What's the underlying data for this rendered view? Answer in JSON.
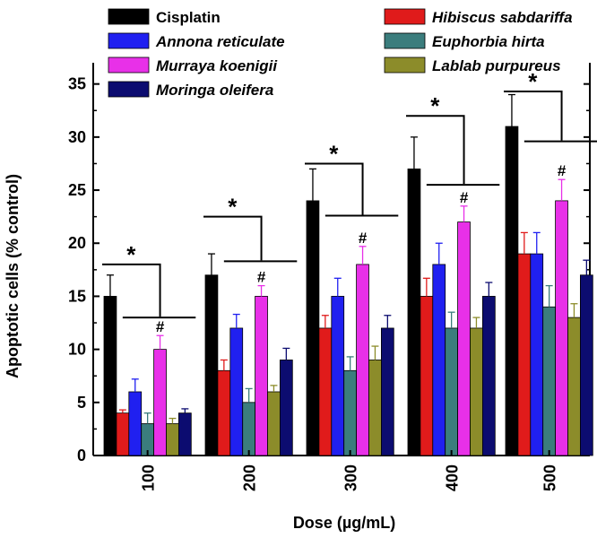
{
  "chart_data": {
    "type": "bar",
    "title": "",
    "xlabel": "Dose (µg/mL)",
    "ylabel": "Apoptotic cells (% control)",
    "ylim": [
      0,
      37
    ],
    "yticks": [
      0,
      5,
      10,
      15,
      20,
      25,
      30,
      35
    ],
    "categories": [
      "100",
      "200",
      "300",
      "400",
      "500"
    ],
    "series": [
      {
        "name": "Cisplatin",
        "italic": false,
        "color": "#000000",
        "values": [
          15,
          17,
          24,
          27,
          31
        ],
        "errors": [
          2,
          2,
          3,
          3,
          3
        ]
      },
      {
        "name": "Hibiscus sabdariffa",
        "italic": true,
        "color": "#e01b1b",
        "values": [
          4,
          8,
          12,
          15,
          19
        ],
        "errors": [
          0.3,
          1,
          1.2,
          1.7,
          2
        ]
      },
      {
        "name": "Annona reticulate",
        "italic": true,
        "color": "#2020f0",
        "values": [
          6,
          12,
          15,
          18,
          19
        ],
        "errors": [
          1.2,
          1.3,
          1.7,
          2,
          2
        ]
      },
      {
        "name": "Euphorbia hirta",
        "italic": true,
        "color": "#3b7d7d",
        "values": [
          3,
          5,
          8,
          12,
          14
        ],
        "errors": [
          1,
          1.3,
          1.3,
          1.5,
          2
        ]
      },
      {
        "name": "Murraya koenigii",
        "italic": true,
        "color": "#e830e8",
        "values": [
          10,
          15,
          18,
          22,
          24
        ],
        "errors": [
          1.3,
          1,
          1.7,
          1.5,
          2
        ]
      },
      {
        "name": "Lablab purpureus",
        "italic": true,
        "color": "#8c8c2a",
        "values": [
          3,
          6,
          9,
          12,
          13
        ],
        "errors": [
          0.5,
          0.6,
          1.3,
          1,
          1.3
        ]
      },
      {
        "name": "Moringa oleifera",
        "italic": true,
        "color": "#0c0c70",
        "values": [
          4,
          9,
          12,
          15,
          17
        ],
        "errors": [
          0.4,
          1.1,
          1.2,
          1.3,
          1.4
        ]
      }
    ],
    "legend": {
      "placement": "top",
      "column_left": [
        "Cisplatin",
        "Annona reticulate",
        "Murraya koenigii",
        "Moringa oleifera"
      ],
      "column_right": [
        "Hibiscus sabdariffa",
        "Euphorbia hirta",
        "Lablab purpureus"
      ]
    },
    "annotations": {
      "star": "*",
      "hash": "#",
      "groups": [
        {
          "category": "100",
          "star_level": 18,
          "sub_level": 13,
          "hash_value": 10
        },
        {
          "category": "200",
          "star_level": 22.5,
          "sub_level": 18.3,
          "hash_value": 15
        },
        {
          "category": "300",
          "star_level": 27.5,
          "sub_level": 22.6,
          "hash_value": 18
        },
        {
          "category": "400",
          "star_level": 32,
          "sub_level": 25.5,
          "hash_value": 22
        },
        {
          "category": "500",
          "star_level": 34.3,
          "sub_level": 29.6,
          "hash_value": 24
        }
      ]
    }
  }
}
